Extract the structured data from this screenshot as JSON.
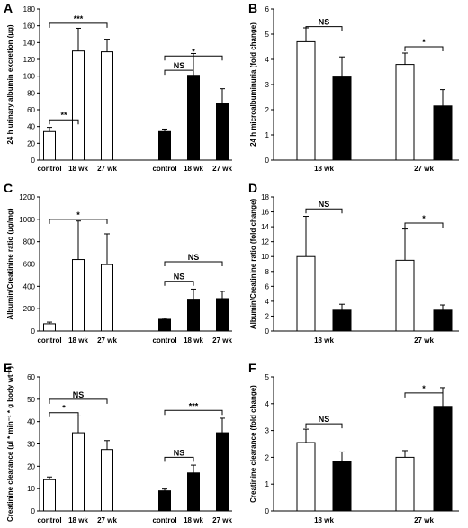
{
  "chart_data": [
    {
      "panel": "A",
      "type": "bar",
      "ylabel": "24 h urinary albumin excretion (µg)",
      "ylim": [
        0,
        180
      ],
      "yticks": [
        0,
        20,
        40,
        60,
        80,
        100,
        120,
        140,
        160,
        180
      ],
      "categories": [
        "control",
        "18 wk",
        "27 wk",
        "control",
        "18 wk",
        "27 wk"
      ],
      "values": [
        34,
        130,
        129,
        34,
        101,
        67
      ],
      "errors": [
        5,
        27,
        15,
        3,
        26,
        18
      ],
      "fills": [
        "white",
        "white",
        "white",
        "black",
        "black",
        "black"
      ],
      "annotations": [
        {
          "from": 0,
          "to": 1,
          "label": "**",
          "y": 48
        },
        {
          "from": 0,
          "to": 2,
          "label": "***",
          "y": 163
        },
        {
          "from": 3,
          "to": 4,
          "label": "NS",
          "y": 107
        },
        {
          "from": 3,
          "to": 5,
          "label": "*",
          "y": 124
        }
      ]
    },
    {
      "panel": "B",
      "type": "bar",
      "ylabel": "24 h microalbuminuria (fold change)",
      "ylim": [
        0,
        6
      ],
      "yticks": [
        0,
        1,
        2,
        3,
        4,
        5,
        6
      ],
      "groups": [
        "18 wk",
        "27 wk"
      ],
      "series": [
        {
          "fill": "white",
          "values": [
            4.7,
            3.8
          ],
          "errors": [
            0.55,
            0.45
          ]
        },
        {
          "fill": "black",
          "values": [
            3.3,
            2.15
          ],
          "errors": [
            0.8,
            0.65
          ]
        }
      ],
      "annotations": [
        {
          "group": 0,
          "label": "NS",
          "y": 5.3
        },
        {
          "group": 1,
          "label": "*",
          "y": 4.5
        }
      ]
    },
    {
      "panel": "C",
      "type": "bar",
      "ylabel": "Albumin/Creatinine ratio (µg/mg)",
      "ylim": [
        0,
        1200
      ],
      "yticks": [
        0,
        200,
        400,
        600,
        800,
        1000,
        1200
      ],
      "categories": [
        "control",
        "18 wk",
        "27 wk",
        "control",
        "18 wk",
        "27 wk"
      ],
      "values": [
        65,
        640,
        595,
        105,
        285,
        290
      ],
      "errors": [
        15,
        345,
        275,
        10,
        90,
        65
      ],
      "fills": [
        "white",
        "white",
        "white",
        "black",
        "black",
        "black"
      ],
      "annotations": [
        {
          "from": 0,
          "to": 2,
          "label": "*",
          "y": 1000
        },
        {
          "from": 3,
          "to": 4,
          "label": "NS",
          "y": 445
        },
        {
          "from": 3,
          "to": 5,
          "label": "NS",
          "y": 620
        }
      ]
    },
    {
      "panel": "D",
      "type": "bar",
      "ylabel": "Albumin/Creatinine ratio (fold change)",
      "ylim": [
        0,
        18
      ],
      "yticks": [
        0,
        2,
        4,
        6,
        8,
        10,
        12,
        14,
        16,
        18
      ],
      "groups": [
        "18 wk",
        "27 wk"
      ],
      "series": [
        {
          "fill": "white",
          "values": [
            10.0,
            9.5
          ],
          "errors": [
            5.4,
            4.2
          ]
        },
        {
          "fill": "black",
          "values": [
            2.8,
            2.8
          ],
          "errors": [
            0.8,
            0.7
          ]
        }
      ],
      "annotations": [
        {
          "group": 0,
          "label": "NS",
          "y": 16.4
        },
        {
          "group": 1,
          "label": "*",
          "y": 14.5
        }
      ]
    },
    {
      "panel": "E",
      "type": "bar",
      "ylabel": "Creatinine clearance (µl * min⁻¹ * g body wt⁻¹)",
      "ylim": [
        0,
        60
      ],
      "yticks": [
        0,
        10,
        20,
        30,
        40,
        50,
        60
      ],
      "categories": [
        "control",
        "18 wk",
        "27 wk",
        "control",
        "18 wk",
        "27 wk"
      ],
      "values": [
        14,
        35,
        27.5,
        9,
        17,
        35
      ],
      "errors": [
        1.2,
        7.5,
        4,
        0.8,
        3.5,
        6.5
      ],
      "fills": [
        "white",
        "white",
        "white",
        "black",
        "black",
        "black"
      ],
      "annotations": [
        {
          "from": 0,
          "to": 1,
          "label": "*",
          "y": 44
        },
        {
          "from": 0,
          "to": 2,
          "label": "NS",
          "y": 50
        },
        {
          "from": 3,
          "to": 4,
          "label": "NS",
          "y": 24
        },
        {
          "from": 3,
          "to": 5,
          "label": "***",
          "y": 45
        }
      ]
    },
    {
      "panel": "F",
      "type": "bar",
      "ylabel": "Creatinine clearance (fold change)",
      "ylim": [
        0,
        5
      ],
      "yticks": [
        0,
        1,
        2,
        3,
        4,
        5
      ],
      "groups": [
        "18 wk",
        "27 wk"
      ],
      "series": [
        {
          "fill": "white",
          "values": [
            2.55,
            2.0
          ],
          "errors": [
            0.5,
            0.25
          ]
        },
        {
          "fill": "black",
          "values": [
            1.85,
            3.9
          ],
          "errors": [
            0.35,
            0.7
          ]
        }
      ],
      "annotations": [
        {
          "group": 0,
          "label": "NS",
          "y": 3.25
        },
        {
          "group": 1,
          "label": "*",
          "y": 4.4
        }
      ]
    }
  ]
}
